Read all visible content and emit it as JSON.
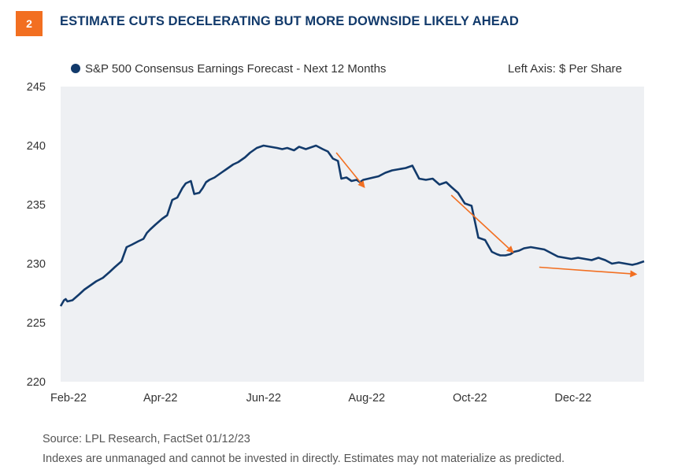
{
  "header": {
    "figure_number": "2",
    "title": "ESTIMATE CUTS DECELERATING BUT MORE DOWNSIDE LIKELY AHEAD"
  },
  "footer": {
    "source": "Source: LPL Research, FactSet  01/12/23",
    "disclaimer": "Indexes are unmanaged and cannot be invested in directly. Estimates may not materialize as predicted."
  },
  "colors": {
    "line": "#123a6b",
    "arrow": "#f26f21",
    "plot_bg": "#eef0f3",
    "badge": "#f26f21",
    "title": "#123a6b"
  },
  "chart_data": {
    "type": "line",
    "title": "",
    "legend": "S&P 500 Consensus Earnings Forecast - Next 12 Months",
    "axis_note": "Left Axis: $ Per Share",
    "ylim": [
      220,
      245
    ],
    "y_ticks": [
      "220",
      "225",
      "230",
      "235",
      "240",
      "245"
    ],
    "x_ticks": [
      "Feb-22",
      "Apr-22",
      "Jun-22",
      "Aug-22",
      "Oct-22",
      "Dec-22"
    ],
    "x_tick_dates": [
      "2022-02-01",
      "2022-04-01",
      "2022-06-01",
      "2022-08-01",
      "2022-10-01",
      "2022-12-01"
    ],
    "xlim": [
      "2022-02-01",
      "2023-01-12"
    ],
    "grid": false,
    "series": [
      {
        "name": "S&P 500 Consensus Earnings Forecast - Next 12 Months",
        "x": [
          "2022-02-01",
          "2022-02-03",
          "2022-02-04",
          "2022-02-05",
          "2022-02-08",
          "2022-02-12",
          "2022-02-15",
          "2022-02-19",
          "2022-02-22",
          "2022-02-26",
          "2022-03-02",
          "2022-03-05",
          "2022-03-09",
          "2022-03-12",
          "2022-03-15",
          "2022-03-19",
          "2022-03-22",
          "2022-03-24",
          "2022-03-26",
          "2022-03-29",
          "2022-04-02",
          "2022-04-05",
          "2022-04-08",
          "2022-04-11",
          "2022-04-14",
          "2022-04-16",
          "2022-04-19",
          "2022-04-21",
          "2022-04-24",
          "2022-04-26",
          "2022-04-28",
          "2022-04-30",
          "2022-05-03",
          "2022-05-07",
          "2022-05-10",
          "2022-05-14",
          "2022-05-17",
          "2022-05-21",
          "2022-05-24",
          "2022-05-28",
          "2022-06-01",
          "2022-06-05",
          "2022-06-09",
          "2022-06-12",
          "2022-06-15",
          "2022-06-19",
          "2022-06-22",
          "2022-06-26",
          "2022-07-02",
          "2022-07-06",
          "2022-07-09",
          "2022-07-12",
          "2022-07-15",
          "2022-07-17",
          "2022-07-20",
          "2022-07-23",
          "2022-07-26",
          "2022-07-28",
          "2022-07-30",
          "2022-08-02",
          "2022-08-05",
          "2022-08-08",
          "2022-08-12",
          "2022-08-16",
          "2022-08-20",
          "2022-08-24",
          "2022-08-28",
          "2022-09-01",
          "2022-09-05",
          "2022-09-09",
          "2022-09-13",
          "2022-09-17",
          "2022-09-20",
          "2022-09-24",
          "2022-09-28",
          "2022-10-02",
          "2022-10-06",
          "2022-10-10",
          "2022-10-14",
          "2022-10-17",
          "2022-10-19",
          "2022-10-22",
          "2022-10-25",
          "2022-10-27",
          "2022-10-30",
          "2022-11-02",
          "2022-11-06",
          "2022-11-10",
          "2022-11-14",
          "2022-11-18",
          "2022-11-22",
          "2022-11-26",
          "2022-11-30",
          "2022-12-04",
          "2022-12-08",
          "2022-12-12",
          "2022-12-16",
          "2022-12-20",
          "2022-12-24",
          "2022-12-28",
          "2023-01-01",
          "2023-01-05",
          "2023-01-08",
          "2023-01-10",
          "2023-01-12"
        ],
        "y": [
          226.4,
          226.9,
          227.0,
          226.8,
          226.9,
          227.4,
          227.8,
          228.2,
          228.5,
          228.8,
          229.3,
          229.7,
          230.2,
          231.4,
          231.6,
          231.9,
          232.1,
          232.6,
          232.9,
          233.3,
          233.8,
          234.1,
          235.4,
          235.6,
          236.4,
          236.8,
          237.0,
          235.9,
          236.0,
          236.4,
          236.9,
          237.1,
          237.3,
          237.7,
          238.0,
          238.4,
          238.6,
          239.0,
          239.4,
          239.8,
          240.0,
          239.9,
          239.8,
          239.7,
          239.8,
          239.6,
          239.9,
          239.7,
          240.0,
          239.7,
          239.5,
          238.9,
          238.7,
          237.2,
          237.3,
          237.0,
          237.1,
          236.9,
          237.1,
          237.2,
          237.3,
          237.4,
          237.7,
          237.9,
          238.0,
          238.1,
          238.3,
          237.2,
          237.1,
          237.2,
          236.7,
          236.9,
          236.5,
          236.0,
          235.1,
          234.9,
          232.2,
          232.0,
          231.0,
          230.8,
          230.7,
          230.7,
          230.8,
          231.0,
          231.1,
          231.3,
          231.4,
          231.3,
          231.2,
          230.9,
          230.6,
          230.5,
          230.4,
          230.5,
          230.4,
          230.3,
          230.5,
          230.3,
          230.0,
          230.1,
          230.0,
          229.9,
          230.0,
          230.1,
          230.2
        ]
      }
    ],
    "annotations": [
      {
        "type": "arrow",
        "from": [
          "2022-07-14",
          239.4
        ],
        "to": [
          "2022-07-31",
          236.4
        ]
      },
      {
        "type": "arrow",
        "from": [
          "2022-09-20",
          235.8
        ],
        "to": [
          "2022-10-27",
          230.9
        ]
      },
      {
        "type": "arrow",
        "from": [
          "2022-11-11",
          229.7
        ],
        "to": [
          "2023-01-08",
          229.1
        ]
      }
    ]
  }
}
